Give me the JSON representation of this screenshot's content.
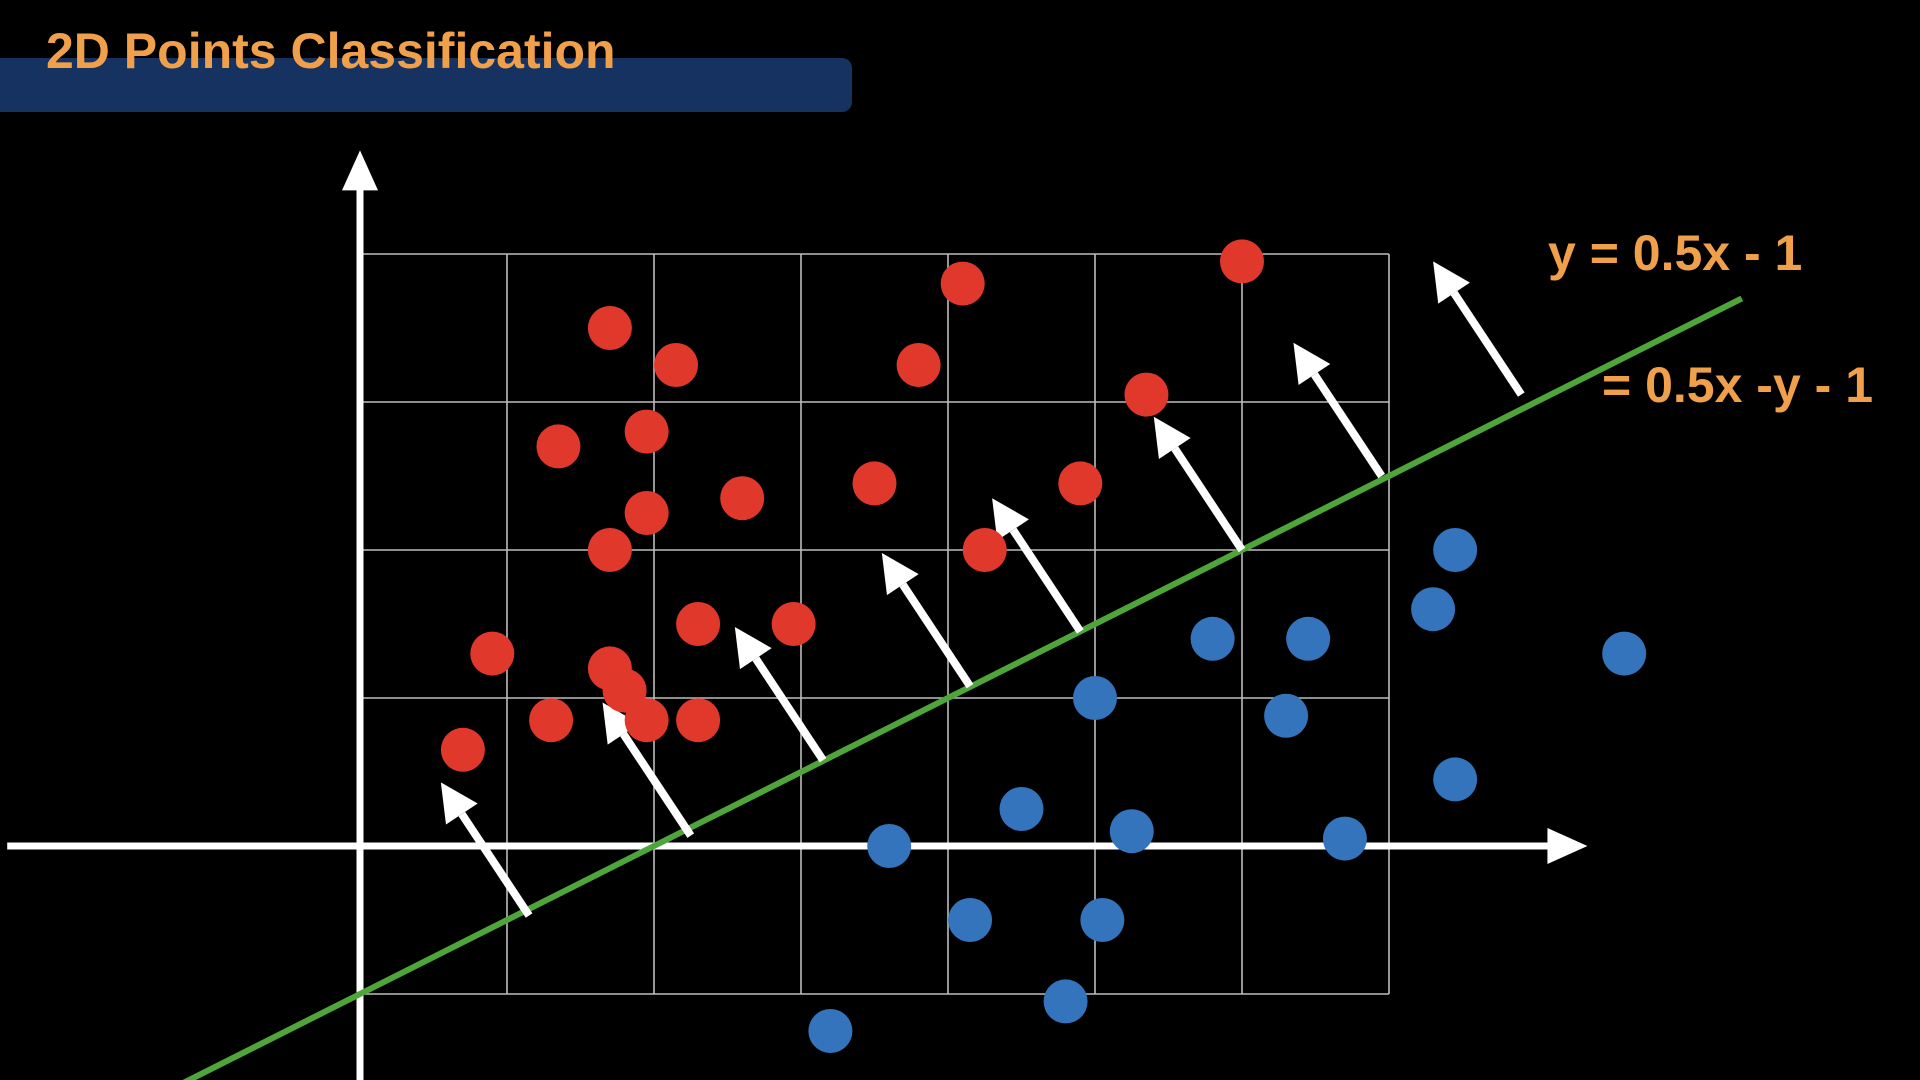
{
  "slide": {
    "title": "2D Points Classification"
  },
  "colors": {
    "background": "#000000",
    "title_bar": "#163260",
    "title_text": "#f0a04b",
    "red_class": "#e0392b",
    "blue_class": "#3474bd",
    "boundary_line": "#4ea53a",
    "normal_arrows": "#ffffff",
    "axes": "#ffffff",
    "grid": "#bdbdbd"
  },
  "chart_data": {
    "type": "scatter",
    "title": "",
    "xlabel": "",
    "ylabel": "",
    "xlim": [
      -2.4,
      8.35
    ],
    "ylim": [
      -1.6,
      4.7
    ],
    "grid": true,
    "grid_x": [
      1,
      2,
      3,
      4,
      5,
      6,
      7
    ],
    "grid_y": [
      -1,
      0,
      1,
      2,
      3,
      4
    ],
    "axes_through_origin": true,
    "series": [
      {
        "class": "red",
        "points": [
          [
            0.7,
            0.65
          ],
          [
            1.3,
            0.85
          ],
          [
            1.8,
            1.05
          ],
          [
            1.95,
            0.85
          ],
          [
            2.3,
            1.5
          ],
          [
            2.95,
            1.5
          ],
          [
            2.3,
            0.85
          ],
          [
            0.9,
            1.3
          ],
          [
            1.7,
            1.2
          ],
          [
            1.7,
            2.0
          ],
          [
            1.95,
            2.25
          ],
          [
            2.6,
            2.35
          ],
          [
            1.35,
            2.7
          ],
          [
            1.95,
            2.8
          ],
          [
            1.7,
            3.5
          ],
          [
            2.15,
            3.25
          ],
          [
            3.5,
            2.45
          ],
          [
            3.8,
            3.25
          ],
          [
            4.1,
            3.8
          ],
          [
            4.25,
            2.0
          ],
          [
            4.9,
            2.45
          ],
          [
            5.35,
            3.05
          ],
          [
            6.0,
            3.95
          ]
        ]
      },
      {
        "class": "blue",
        "points": [
          [
            3.6,
            0.0
          ],
          [
            4.15,
            -0.5
          ],
          [
            4.5,
            0.25
          ],
          [
            5.0,
            1.0
          ],
          [
            5.25,
            0.1
          ],
          [
            5.05,
            -0.5
          ],
          [
            4.8,
            -1.05
          ],
          [
            3.2,
            -1.25
          ],
          [
            5.8,
            1.4
          ],
          [
            6.45,
            1.4
          ],
          [
            6.3,
            0.88
          ],
          [
            6.7,
            0.05
          ],
          [
            7.3,
            1.6
          ],
          [
            7.45,
            2.0
          ],
          [
            7.45,
            0.45
          ],
          [
            8.6,
            1.3
          ]
        ]
      }
    ],
    "decision_boundary": {
      "slope": 0.5,
      "intercept": -1,
      "x_range": [
        -1.2,
        9.4
      ]
    },
    "normal_arrows": [
      {
        "base": [
          1.15,
          -0.47
        ],
        "tip": [
          0.55,
          0.43
        ]
      },
      {
        "base": [
          2.25,
          0.07
        ],
        "tip": [
          1.65,
          0.97
        ]
      },
      {
        "base": [
          3.15,
          0.58
        ],
        "tip": [
          2.55,
          1.48
        ]
      },
      {
        "base": [
          4.15,
          1.08
        ],
        "tip": [
          3.55,
          1.98
        ]
      },
      {
        "base": [
          4.9,
          1.45
        ],
        "tip": [
          4.3,
          2.35
        ]
      },
      {
        "base": [
          6.0,
          2.0
        ],
        "tip": [
          5.4,
          2.9
        ]
      },
      {
        "base": [
          6.95,
          2.5
        ],
        "tip": [
          6.35,
          3.4
        ]
      },
      {
        "base": [
          7.9,
          3.05
        ],
        "tip": [
          7.3,
          3.95
        ]
      }
    ],
    "annotations": [
      {
        "text": "y = 0.5x - 1"
      },
      {
        "text": "= 0.5x -y - 1"
      }
    ]
  }
}
